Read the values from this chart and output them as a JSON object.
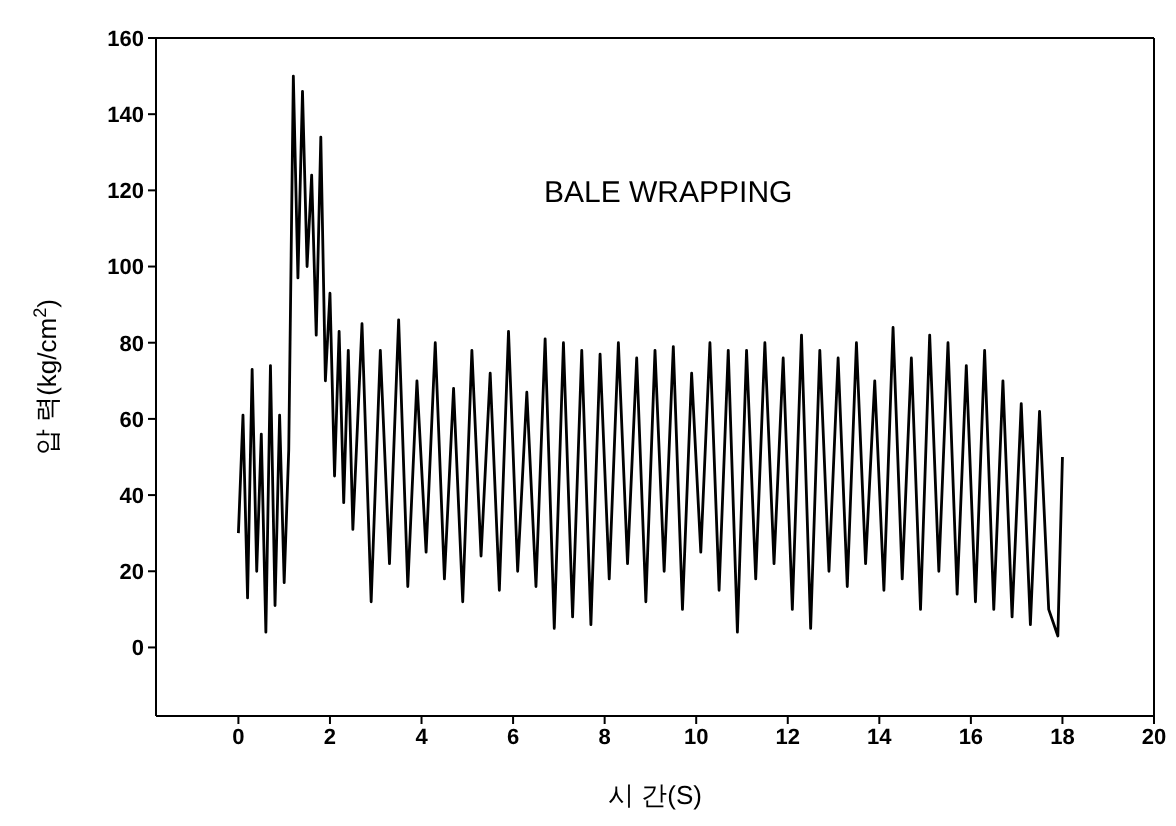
{
  "chart_data": {
    "type": "line",
    "xlabel": "시 간(S)",
    "ylabel": "압 력(kg/cm$^{2}$)",
    "annotations": [
      "BALE WRAPPING"
    ],
    "xlim": [
      -1.8,
      20
    ],
    "xticks": [
      0,
      2,
      4,
      6,
      8,
      10,
      12,
      14,
      16,
      18,
      20
    ],
    "ylim": [
      -18,
      160
    ],
    "yticks": [
      0,
      20,
      40,
      60,
      80,
      100,
      120,
      140,
      160
    ],
    "marker": "none",
    "line_style": "solid",
    "series": [
      {
        "color": "#000000",
        "x": [
          0,
          0.1,
          0.2,
          0.3,
          0.4,
          0.5,
          0.6,
          0.7,
          0.8,
          0.9,
          1.0,
          1.1,
          1.2,
          1.3,
          1.4,
          1.5,
          1.6,
          1.7,
          1.8,
          1.9,
          2.0,
          2.1,
          2.2,
          2.3,
          2.4,
          2.5,
          2.7,
          2.9,
          3.1,
          3.3,
          3.5,
          3.7,
          3.9,
          4.1,
          4.3,
          4.5,
          4.7,
          4.9,
          5.1,
          5.3,
          5.5,
          5.7,
          5.9,
          6.1,
          6.3,
          6.5,
          6.7,
          6.9,
          7.1,
          7.3,
          7.5,
          7.7,
          7.9,
          8.1,
          8.3,
          8.5,
          8.7,
          8.9,
          9.1,
          9.3,
          9.5,
          9.7,
          9.9,
          10.1,
          10.3,
          10.5,
          10.7,
          10.9,
          11.1,
          11.3,
          11.5,
          11.7,
          11.9,
          12.1,
          12.3,
          12.5,
          12.7,
          12.9,
          13.1,
          13.3,
          13.5,
          13.7,
          13.9,
          14.1,
          14.3,
          14.5,
          14.7,
          14.9,
          15.1,
          15.3,
          15.5,
          15.7,
          15.9,
          16.1,
          16.3,
          16.5,
          16.7,
          16.9,
          17.1,
          17.3,
          17.5,
          17.7,
          17.9,
          18.0
        ],
        "values": [
          30,
          61,
          13,
          73,
          20,
          56,
          4,
          74,
          11,
          61,
          17,
          52,
          150,
          97,
          146,
          100,
          124,
          82,
          134,
          70,
          93,
          45,
          83,
          38,
          78,
          31,
          85,
          12,
          78,
          22,
          86,
          16,
          70,
          25,
          80,
          18,
          68,
          12,
          78,
          24,
          72,
          15,
          83,
          20,
          67,
          16,
          81,
          5,
          80,
          8,
          78,
          6,
          77,
          18,
          80,
          22,
          76,
          12,
          78,
          20,
          79,
          10,
          72,
          25,
          80,
          15,
          78,
          4,
          78,
          18,
          80,
          22,
          76,
          10,
          82,
          5,
          78,
          20,
          76,
          16,
          80,
          22,
          70,
          15,
          84,
          18,
          76,
          10,
          82,
          20,
          80,
          14,
          74,
          12,
          78,
          10,
          70,
          8,
          64,
          6,
          62,
          10,
          3,
          50
        ]
      }
    ]
  }
}
